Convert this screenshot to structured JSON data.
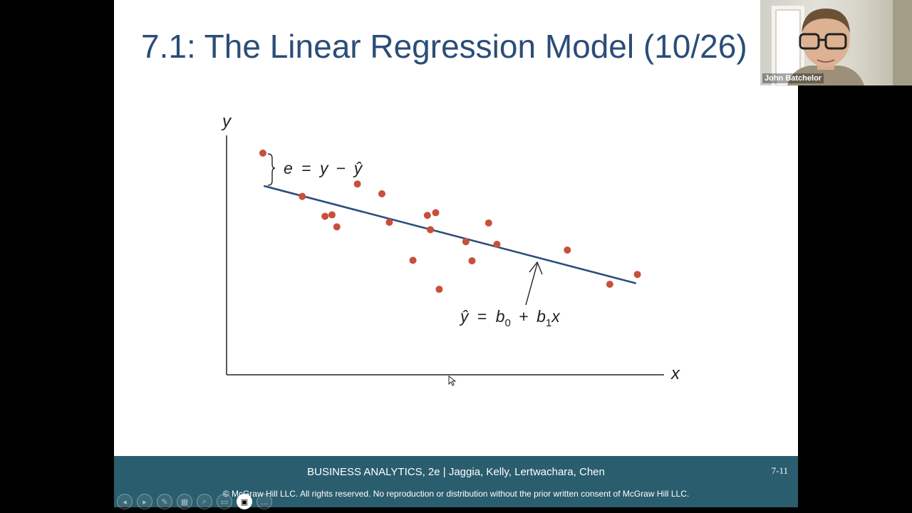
{
  "slide": {
    "title": "7.1: The Linear Regression Model (10/26)",
    "footer_book": "BUSINESS ANALYTICS, 2e | Jaggia, Kelly, Lertwachara, Chen",
    "footer_page": "7-11",
    "footer_copyright": "© McGraw Hill LLC. All rights reserved. No reproduction or distribution without the prior written consent of McGraw Hill LLC."
  },
  "chart_data": {
    "type": "scatter",
    "title": "",
    "xlabel": "x",
    "ylabel": "y",
    "xlim": [
      0,
      100
    ],
    "ylim": [
      0,
      100
    ],
    "points": [
      {
        "x": 8.3,
        "y": 92.6
      },
      {
        "x": 17.3,
        "y": 74.5
      },
      {
        "x": 22.5,
        "y": 66.2
      },
      {
        "x": 24.1,
        "y": 66.8
      },
      {
        "x": 25.2,
        "y": 61.8
      },
      {
        "x": 29.9,
        "y": 79.7
      },
      {
        "x": 35.5,
        "y": 75.6
      },
      {
        "x": 37.2,
        "y": 63.7
      },
      {
        "x": 42.6,
        "y": 47.8
      },
      {
        "x": 45.9,
        "y": 66.6
      },
      {
        "x": 46.6,
        "y": 60.6
      },
      {
        "x": 47.8,
        "y": 67.7
      },
      {
        "x": 48.6,
        "y": 35.7
      },
      {
        "x": 54.7,
        "y": 55.6
      },
      {
        "x": 56.1,
        "y": 47.6
      },
      {
        "x": 59.9,
        "y": 63.4
      },
      {
        "x": 61.8,
        "y": 54.5
      },
      {
        "x": 77.9,
        "y": 52.1
      },
      {
        "x": 87.6,
        "y": 37.8
      },
      {
        "x": 93.9,
        "y": 41.9
      }
    ],
    "fit_line": {
      "x": [
        8.5,
        93.6
      ],
      "y": [
        78.9,
        38.2
      ]
    },
    "annotations": {
      "residual": {
        "e": "e",
        "eq": "=",
        "y": "y",
        "minus": "−",
        "yhat": "ŷ"
      },
      "regression_eq": {
        "yhat": "ŷ",
        "eq": "=",
        "b": "b",
        "sub0": "0",
        "plus": "+",
        "sub1": "1",
        "x": "x"
      }
    },
    "colors": {
      "points": "#c8503a",
      "line": "#2b4d7e",
      "axis": "#222222"
    },
    "grid": false
  },
  "controls": [
    {
      "icon": "previous-slide-icon",
      "glyph": "◂"
    },
    {
      "icon": "next-slide-icon",
      "glyph": "▸"
    },
    {
      "icon": "pen-icon",
      "glyph": "✎"
    },
    {
      "icon": "slides-grid-icon",
      "glyph": "▦"
    },
    {
      "icon": "zoom-icon",
      "glyph": "⌕"
    },
    {
      "icon": "subtitles-icon",
      "glyph": "▭"
    },
    {
      "icon": "camera-icon",
      "glyph": "▣"
    },
    {
      "icon": "more-icon",
      "glyph": "…"
    }
  ],
  "video": {
    "participant_name": "John Batchelor"
  }
}
